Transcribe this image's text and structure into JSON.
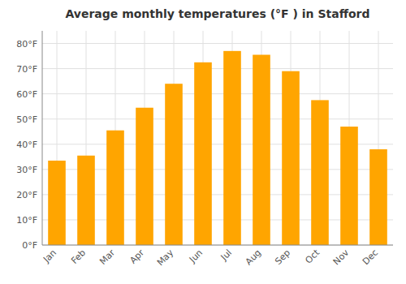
{
  "chart_data": {
    "type": "bar",
    "title": "Average monthly temperatures (°F ) in Stafford",
    "categories": [
      "Jan",
      "Feb",
      "Mar",
      "Apr",
      "May",
      "Jun",
      "Jul",
      "Aug",
      "Sep",
      "Oct",
      "Nov",
      "Dec"
    ],
    "values": [
      33.5,
      35.5,
      45.5,
      54.5,
      64.0,
      72.5,
      77.0,
      75.5,
      69.0,
      57.5,
      47.0,
      38.0
    ],
    "color": "#FFA500",
    "ylim": [
      0,
      85
    ],
    "yticks": [
      {
        "value": 0,
        "label": "0°F"
      },
      {
        "value": 10,
        "label": "10°F"
      },
      {
        "value": 20,
        "label": "20°F"
      },
      {
        "value": 30,
        "label": "30°F"
      },
      {
        "value": 40,
        "label": "40°F"
      },
      {
        "value": 50,
        "label": "50°F"
      },
      {
        "value": 60,
        "label": "60°F"
      },
      {
        "value": 70,
        "label": "70°F"
      },
      {
        "value": 80,
        "label": "80°F"
      }
    ],
    "grid": true
  }
}
